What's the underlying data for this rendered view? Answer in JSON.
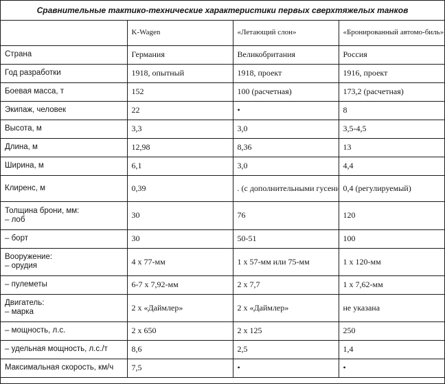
{
  "title": "Сравнительные тактико-технические характеристики первых сверхтяжелых танков",
  "columns": [
    "K-Wagen",
    "«Летающий слон»",
    "«Бронированный автомо-биль» В.Д. Менделеева"
  ],
  "rows": {
    "country": {
      "label": "Страна",
      "v1": "Германия",
      "v2": "Великобритания",
      "v3": "Россия"
    },
    "year": {
      "label": "Год разработки",
      "v1": "1918, опытный",
      "v2": "1918, проект",
      "v3": "1916, проект"
    },
    "mass": {
      "label": "Боевая масса, т",
      "v1": "152",
      "v2": "100 (расчетная)",
      "v3": "173,2 (расчетная)"
    },
    "crew": {
      "label": "Экипаж, человек",
      "v1": "22",
      "v2": "•",
      "v3": "8"
    },
    "height": {
      "label": "Высота, м",
      "v1": "3,3",
      "v2": "3,0",
      "v3": "3,5-4,5"
    },
    "length": {
      "label": "Длина, м",
      "v1": "12,98",
      "v2": "8,36",
      "v3": "13"
    },
    "width": {
      "label": "Ширина, м",
      "v1": "6,1",
      "v2": "3,0",
      "v3": "4,4"
    },
    "clearance": {
      "label": "Клиренс, м",
      "v1": "0,39",
      "v2": ". (с дополнительными гусеницами под днищем)",
      "v3": "0,4 (регулируемый)"
    },
    "armor": {
      "label": "Толщина брони, мм:",
      "sub": "– лоб",
      "v1": "30",
      "v2": "76",
      "v3": "120"
    },
    "armor_side": {
      "label": "– борт",
      "v1": "30",
      "v2": "50-51",
      "v3": "100"
    },
    "armament": {
      "label": "Вооружение:",
      "sub": "– орудия",
      "v1": "4 х 77-мм",
      "v2": "1 х 57-мм или 75-мм",
      "v3": "1 х 120-мм"
    },
    "mg": {
      "label": "– пулеметы",
      "v1": "6-7 х 7,92-мм",
      "v2": "2 х 7,7",
      "v3": "1 х 7,62-мм"
    },
    "engine": {
      "label": "Двигатель:",
      "sub": "– марка",
      "v1": "2 х «Даймлер»",
      "v2": "2 х «Даймлер»",
      "v3": "не указана"
    },
    "power": {
      "label": "– мощность, л.с.",
      "v1": "2 х 650",
      "v2": "2 х 125",
      "v3": "250"
    },
    "specific_power": {
      "label": "– удельная мощность, л.с./т",
      "v1": "8,6",
      "v2": "2,5",
      "v3": "1,4"
    },
    "speed": {
      "label": "Максимальная скорость, км/ч",
      "v1": "7,5",
      "v2": "•",
      "v3": "•"
    }
  }
}
